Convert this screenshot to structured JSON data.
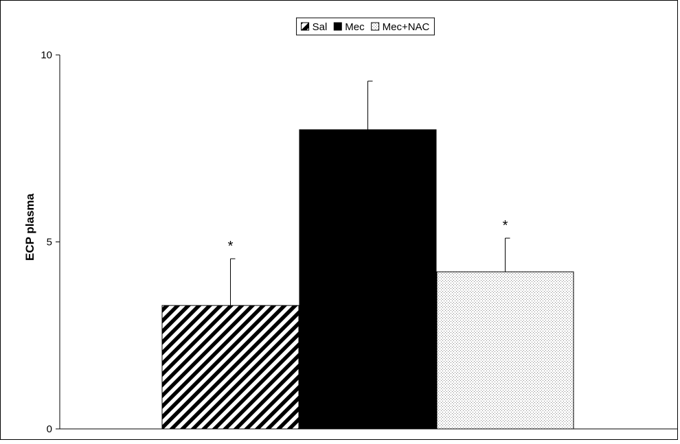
{
  "chart_data": {
    "type": "bar",
    "title": "",
    "xlabel": "",
    "ylabel": "ECP plasma",
    "ylim": [
      0,
      10
    ],
    "yticks": [
      0,
      5,
      10
    ],
    "grid": false,
    "legend_position": "top-center",
    "series": [
      {
        "name": "Sal",
        "value": 3.3,
        "error": 1.25,
        "significance": "*",
        "pattern": "diagonal-hatch",
        "color": "#000000"
      },
      {
        "name": "Mec",
        "value": 8.0,
        "error": 1.3,
        "significance": "",
        "pattern": "solid",
        "color": "#000000"
      },
      {
        "name": "Mec+NAC",
        "value": 4.2,
        "error": 0.9,
        "significance": "*",
        "pattern": "dotted",
        "color": "#000000"
      }
    ]
  }
}
